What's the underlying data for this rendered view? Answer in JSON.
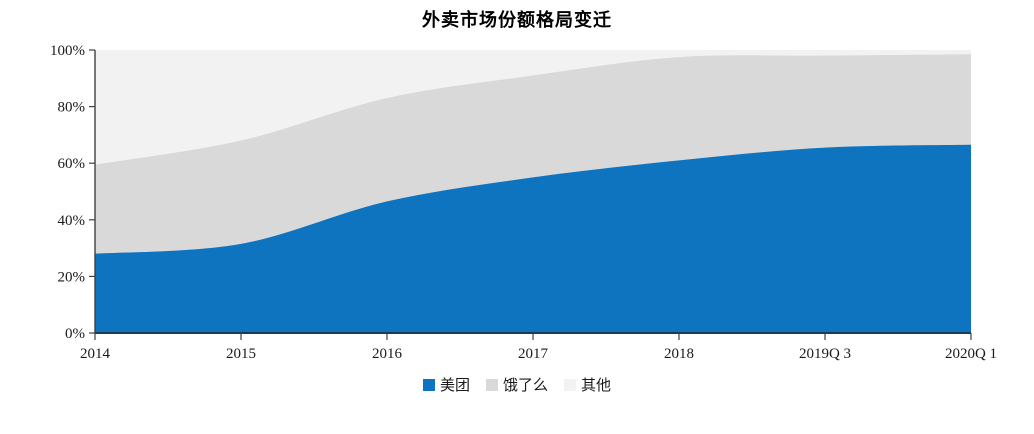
{
  "chart_data": {
    "type": "area",
    "stacked": true,
    "smooth": true,
    "title": "外卖市场份额格局变迁",
    "categories": [
      "2014",
      "2015",
      "2016",
      "2017",
      "2018",
      "2019Q 3",
      "2020Q 1"
    ],
    "series": [
      {
        "name": "美团",
        "color": "#0e74bf",
        "values": [
          28,
          31.5,
          46.5,
          55,
          61,
          65.5,
          66.5
        ]
      },
      {
        "name": "饿了么",
        "color": "#d9d9d9",
        "values": [
          31.5,
          36.5,
          36.5,
          36,
          36.5,
          32.5,
          32
        ]
      },
      {
        "name": "其他",
        "color": "#f2f2f2",
        "values": [
          40.5,
          32,
          17,
          9,
          2.5,
          2,
          1.5
        ]
      }
    ],
    "y_ticks": [
      "0%",
      "20%",
      "40%",
      "60%",
      "80%",
      "100%"
    ],
    "ylim": [
      0,
      100
    ],
    "legend_position": "bottom",
    "grid": false,
    "axis_color": "#404040",
    "x_axis_line_color": "#1c3a5e",
    "tick_label_color": "#1a1a1a"
  }
}
